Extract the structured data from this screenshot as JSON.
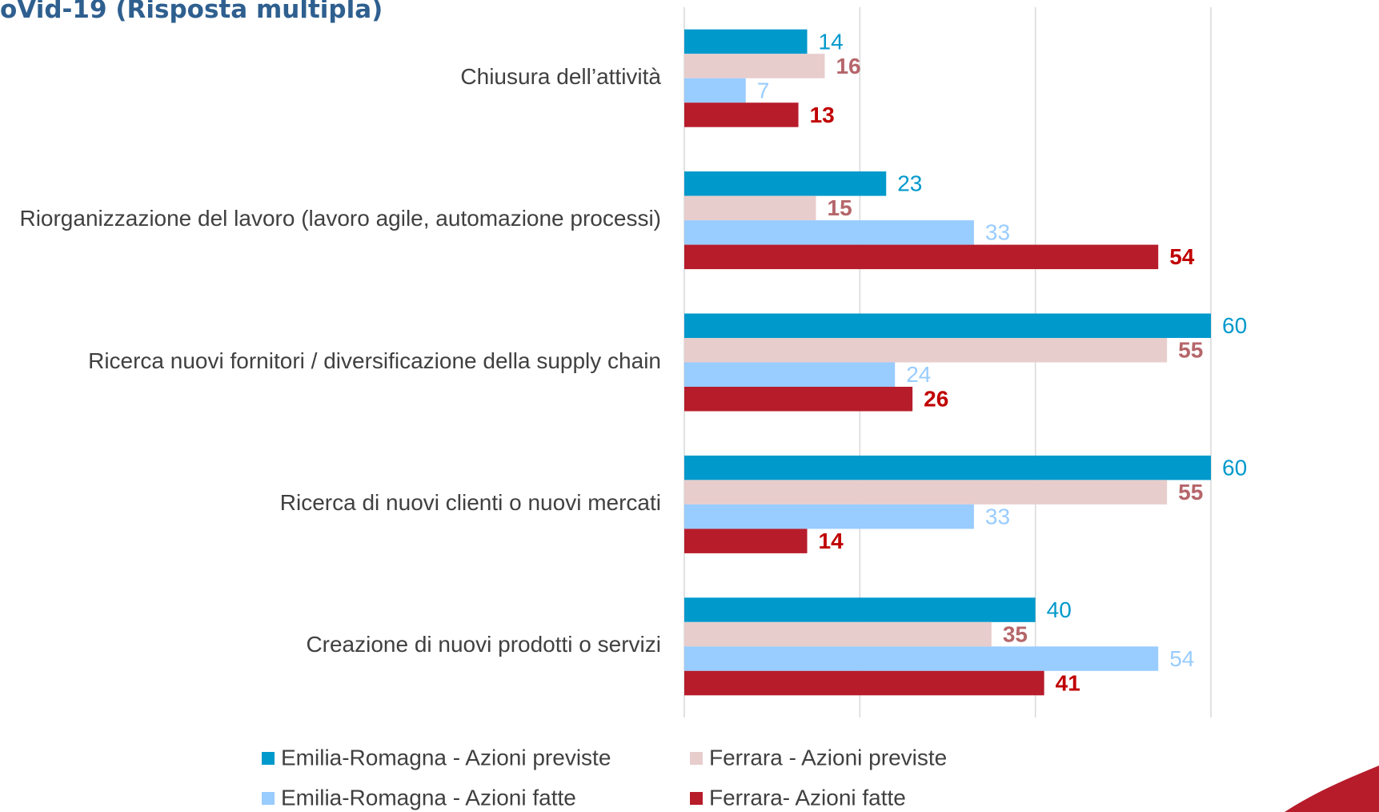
{
  "chart_data": {
    "type": "barh",
    "title": "oVid-19 (Risposta multipla)",
    "categories": [
      "Chiusura dell’attività",
      "Riorganizzazione del lavoro (lavoro agile, automazione processi)",
      "Ricerca nuovi fornitori / diversificazione della supply chain",
      "Ricerca di nuovi clienti o nuovi mercati",
      "Creazione di nuovi prodotti o servizi"
    ],
    "series": [
      {
        "name": "Emilia-Romagna - Azioni previste",
        "color": "#0099cc",
        "label_color": "#0099cc",
        "label_bold": false,
        "values": [
          14,
          23,
          60,
          60,
          40
        ]
      },
      {
        "name": "Ferrara - Azioni previste",
        "color": "#e8cdcd",
        "label_color": "#b5666a",
        "label_bold": true,
        "values": [
          16,
          15,
          55,
          55,
          35
        ]
      },
      {
        "name": "Emilia-Romagna - Azioni fatte",
        "color": "#99ccff",
        "label_color": "#99ccff",
        "label_bold": false,
        "values": [
          7,
          33,
          24,
          33,
          54
        ]
      },
      {
        "name": "Ferrara- Azioni fatte",
        "color": "#b71c2b",
        "label_color": "#c00000",
        "label_bold": true,
        "values": [
          13,
          54,
          26,
          14,
          41
        ]
      }
    ],
    "xlim": [
      0,
      60
    ],
    "xticks": [
      0,
      20,
      40,
      60
    ],
    "grid": true
  }
}
